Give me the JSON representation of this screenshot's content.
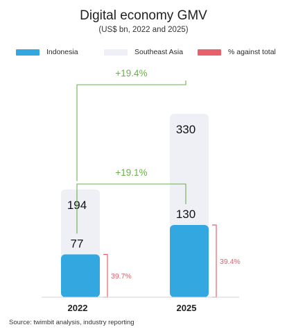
{
  "chart_data": {
    "type": "bar",
    "title": "Digital economy GMV",
    "subtitle": "(US$ bn, 2022 and 2025)",
    "categories": [
      "2022",
      "2025"
    ],
    "series": [
      {
        "name": "Indonesia",
        "values": [
          77,
          130
        ],
        "color": "#33a7e0"
      },
      {
        "name": "Southeast Asia",
        "values": [
          194,
          330
        ],
        "color": "#eef0f5"
      }
    ],
    "share_series": {
      "name": "% against total",
      "values": [
        "39.7%",
        "39.4%"
      ],
      "color": "#e8606a"
    },
    "growth_annotations": [
      {
        "label": "+19.4%",
        "series": "Southeast Asia",
        "color": "#6ab04c"
      },
      {
        "label": "+19.1%",
        "series": "Indonesia",
        "color": "#6ab04c"
      }
    ],
    "value_labels": {
      "indonesia": [
        "77",
        "130"
      ],
      "southeast_asia": [
        "194",
        "330"
      ]
    },
    "legend_placement": "top",
    "grid": false
  },
  "legend": {
    "indonesia": {
      "label": "Indonesia",
      "color": "#33a7e0"
    },
    "sea": {
      "label": "Southeast Asia",
      "color": "#eef0f5"
    },
    "pct": {
      "label": "% against total",
      "color": "#e8606a"
    }
  },
  "source": "Source: twimbit analysis, industry reporting"
}
